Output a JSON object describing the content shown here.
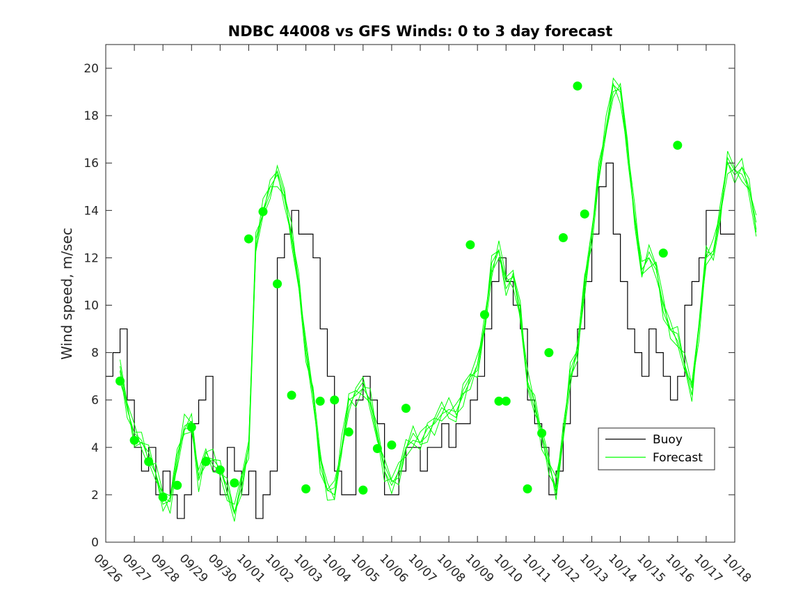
{
  "chart_data": {
    "type": "line",
    "title": "NDBC 44008 vs GFS Winds: 0 to 3 day forecast",
    "xlabel": "",
    "ylabel": "Wind speed, m/sec",
    "x_unit": "day",
    "x_ticks": [
      "09/26",
      "09/27",
      "09/28",
      "09/29",
      "09/30",
      "10/01",
      "10/02",
      "10/03",
      "10/04",
      "10/05",
      "10/06",
      "10/07",
      "10/08",
      "10/09",
      "10/10",
      "10/11",
      "10/12",
      "10/13",
      "10/14",
      "10/15",
      "10/16",
      "10/17",
      "10/18"
    ],
    "xlim": [
      "09/26 00:00",
      "10/18 00:00"
    ],
    "ylim": [
      0,
      21
    ],
    "y_ticks": [
      0,
      2,
      4,
      6,
      8,
      10,
      12,
      14,
      16,
      18,
      20
    ],
    "grid": false,
    "legend": {
      "placement": "lower-right",
      "entries": [
        "Buoy",
        "Forecast"
      ]
    },
    "colors": {
      "buoy": "#000000",
      "forecast": "#00ff00",
      "markers": "#00ff00"
    },
    "series": [
      {
        "name": "Buoy",
        "style": "step-line",
        "points": [
          [
            "09/26 00:00",
            7
          ],
          [
            "09/26 06:00",
            8
          ],
          [
            "09/26 12:00",
            9
          ],
          [
            "09/26 18:00",
            6
          ],
          [
            "09/27 00:00",
            4
          ],
          [
            "09/27 06:00",
            3
          ],
          [
            "09/27 12:00",
            4
          ],
          [
            "09/27 18:00",
            2
          ],
          [
            "09/28 00:00",
            3
          ],
          [
            "09/28 06:00",
            2
          ],
          [
            "09/28 12:00",
            1
          ],
          [
            "09/28 18:00",
            2
          ],
          [
            "09/29 00:00",
            5
          ],
          [
            "09/29 06:00",
            6
          ],
          [
            "09/29 12:00",
            7
          ],
          [
            "09/29 18:00",
            3
          ],
          [
            "09/30 00:00",
            2
          ],
          [
            "09/30 06:00",
            4
          ],
          [
            "09/30 12:00",
            3
          ],
          [
            "09/30 18:00",
            2
          ],
          [
            "10/01 00:00",
            3
          ],
          [
            "10/01 06:00",
            1
          ],
          [
            "10/01 12:00",
            2
          ],
          [
            "10/01 18:00",
            3
          ],
          [
            "10/02 00:00",
            12
          ],
          [
            "10/02 06:00",
            13
          ],
          [
            "10/02 12:00",
            14
          ],
          [
            "10/02 18:00",
            13
          ],
          [
            "10/03 00:00",
            13
          ],
          [
            "10/03 06:00",
            12
          ],
          [
            "10/03 12:00",
            9
          ],
          [
            "10/03 18:00",
            7
          ],
          [
            "10/04 00:00",
            3
          ],
          [
            "10/04 06:00",
            2
          ],
          [
            "10/04 12:00",
            2
          ],
          [
            "10/04 18:00",
            6
          ],
          [
            "10/05 00:00",
            7
          ],
          [
            "10/05 06:00",
            6
          ],
          [
            "10/05 12:00",
            5
          ],
          [
            "10/05 18:00",
            2
          ],
          [
            "10/06 00:00",
            2
          ],
          [
            "10/06 06:00",
            3
          ],
          [
            "10/06 12:00",
            4
          ],
          [
            "10/06 18:00",
            4
          ],
          [
            "10/07 00:00",
            3
          ],
          [
            "10/07 06:00",
            4
          ],
          [
            "10/07 12:00",
            4
          ],
          [
            "10/07 18:00",
            5
          ],
          [
            "10/08 00:00",
            4
          ],
          [
            "10/08 06:00",
            5
          ],
          [
            "10/08 12:00",
            5
          ],
          [
            "10/08 18:00",
            6
          ],
          [
            "10/09 00:00",
            7
          ],
          [
            "10/09 06:00",
            9
          ],
          [
            "10/09 12:00",
            11
          ],
          [
            "10/09 18:00",
            12
          ],
          [
            "10/10 00:00",
            11
          ],
          [
            "10/10 06:00",
            10
          ],
          [
            "10/10 12:00",
            9
          ],
          [
            "10/10 18:00",
            6
          ],
          [
            "10/11 00:00",
            5
          ],
          [
            "10/11 06:00",
            4
          ],
          [
            "10/11 12:00",
            2
          ],
          [
            "10/11 18:00",
            3
          ],
          [
            "10/12 00:00",
            5
          ],
          [
            "10/12 06:00",
            7
          ],
          [
            "10/12 12:00",
            9
          ],
          [
            "10/12 18:00",
            11
          ],
          [
            "10/13 00:00",
            13
          ],
          [
            "10/13 06:00",
            15
          ],
          [
            "10/13 12:00",
            16
          ],
          [
            "10/13 18:00",
            13
          ],
          [
            "10/14 00:00",
            11
          ],
          [
            "10/14 06:00",
            9
          ],
          [
            "10/14 12:00",
            8
          ],
          [
            "10/14 18:00",
            7
          ],
          [
            "10/15 00:00",
            9
          ],
          [
            "10/15 06:00",
            8
          ],
          [
            "10/15 12:00",
            7
          ],
          [
            "10/15 18:00",
            6
          ],
          [
            "10/16 00:00",
            7
          ],
          [
            "10/16 06:00",
            10
          ],
          [
            "10/16 12:00",
            11
          ],
          [
            "10/16 18:00",
            12
          ],
          [
            "10/17 00:00",
            14
          ],
          [
            "10/17 06:00",
            14
          ],
          [
            "10/17 12:00",
            13
          ],
          [
            "10/17 18:00",
            13
          ]
        ]
      },
      {
        "name": "Forecast",
        "style": "line-ensemble",
        "points": [
          [
            "09/26 12:00",
            7.2
          ],
          [
            "09/26 18:00",
            5.6
          ],
          [
            "09/27 00:00",
            4.6
          ],
          [
            "09/27 06:00",
            4.3
          ],
          [
            "09/27 12:00",
            3.5
          ],
          [
            "09/27 18:00",
            2.9
          ],
          [
            "09/28 00:00",
            1.9
          ],
          [
            "09/28 06:00",
            1.7
          ],
          [
            "09/28 12:00",
            3.4
          ],
          [
            "09/28 18:00",
            4.9
          ],
          [
            "09/29 00:00",
            5.1
          ],
          [
            "09/29 06:00",
            2.6
          ],
          [
            "09/29 12:00",
            3.6
          ],
          [
            "09/29 18:00",
            3.5
          ],
          [
            "09/30 00:00",
            3.1
          ],
          [
            "09/30 06:00",
            2.1
          ],
          [
            "09/30 12:00",
            1.2
          ],
          [
            "09/30 18:00",
            2.6
          ],
          [
            "10/01 00:00",
            4.0
          ],
          [
            "10/01 06:00",
            12.5
          ],
          [
            "10/01 12:00",
            14.0
          ],
          [
            "10/01 18:00",
            15.0
          ],
          [
            "10/02 00:00",
            15.5
          ],
          [
            "10/02 06:00",
            14.5
          ],
          [
            "10/02 12:00",
            13.0
          ],
          [
            "10/02 18:00",
            11.0
          ],
          [
            "10/03 00:00",
            8.0
          ],
          [
            "10/03 06:00",
            6.2
          ],
          [
            "10/03 12:00",
            3.5
          ],
          [
            "10/03 18:00",
            2.2
          ],
          [
            "10/04 00:00",
            2.0
          ],
          [
            "10/04 06:00",
            4.0
          ],
          [
            "10/04 12:00",
            6.0
          ],
          [
            "10/04 18:00",
            6.2
          ],
          [
            "10/05 00:00",
            6.5
          ],
          [
            "10/05 06:00",
            6.0
          ],
          [
            "10/05 12:00",
            4.6
          ],
          [
            "10/05 18:00",
            3.0
          ],
          [
            "10/06 00:00",
            2.4
          ],
          [
            "10/06 06:00",
            3.0
          ],
          [
            "10/06 12:00",
            4.0
          ],
          [
            "10/06 18:00",
            4.3
          ],
          [
            "10/07 00:00",
            4.2
          ],
          [
            "10/07 06:00",
            4.8
          ],
          [
            "10/07 12:00",
            5.0
          ],
          [
            "10/07 18:00",
            5.4
          ],
          [
            "10/08 00:00",
            5.6
          ],
          [
            "10/08 06:00",
            5.5
          ],
          [
            "10/08 12:00",
            6.2
          ],
          [
            "10/08 18:00",
            6.8
          ],
          [
            "10/09 00:00",
            7.5
          ],
          [
            "10/09 06:00",
            9.2
          ],
          [
            "10/09 12:00",
            11.5
          ],
          [
            "10/09 18:00",
            12.3
          ],
          [
            "10/10 00:00",
            11.0
          ],
          [
            "10/10 06:00",
            11.2
          ],
          [
            "10/10 12:00",
            9.6
          ],
          [
            "10/10 18:00",
            6.8
          ],
          [
            "10/11 00:00",
            5.9
          ],
          [
            "10/11 06:00",
            4.4
          ],
          [
            "10/11 12:00",
            3.2
          ],
          [
            "10/11 18:00",
            2.3
          ],
          [
            "10/12 00:00",
            4.6
          ],
          [
            "10/12 06:00",
            7.0
          ],
          [
            "10/12 12:00",
            8.0
          ],
          [
            "10/12 18:00",
            11.0
          ],
          [
            "10/13 00:00",
            12.9
          ],
          [
            "10/13 06:00",
            15.5
          ],
          [
            "10/13 12:00",
            17.5
          ],
          [
            "10/13 18:00",
            19.3
          ],
          [
            "10/14 00:00",
            19.0
          ],
          [
            "10/14 06:00",
            16.5
          ],
          [
            "10/14 12:00",
            13.8
          ],
          [
            "10/14 18:00",
            11.5
          ],
          [
            "10/15 00:00",
            12.0
          ],
          [
            "10/15 06:00",
            11.5
          ],
          [
            "10/15 12:00",
            10.0
          ],
          [
            "10/15 18:00",
            9.0
          ],
          [
            "10/16 00:00",
            8.5
          ],
          [
            "10/16 06:00",
            7.5
          ],
          [
            "10/16 12:00",
            6.5
          ],
          [
            "10/16 18:00",
            9.0
          ],
          [
            "10/17 00:00",
            12.0
          ],
          [
            "10/17 06:00",
            12.3
          ],
          [
            "10/17 12:00",
            14.0
          ],
          [
            "10/17 18:00",
            16.0
          ],
          [
            "10/18 00:00",
            15.5
          ],
          [
            "10/18 06:00",
            15.8
          ],
          [
            "10/18 12:00",
            15.0
          ],
          [
            "10/18 18:00",
            13.2
          ]
        ]
      },
      {
        "name": "",
        "style": "markers",
        "points": [
          [
            "09/26 12:00",
            6.8
          ],
          [
            "09/27 00:00",
            4.3
          ],
          [
            "09/27 12:00",
            3.4
          ],
          [
            "09/28 00:00",
            1.9
          ],
          [
            "09/28 12:00",
            2.4
          ],
          [
            "09/29 00:00",
            4.85
          ],
          [
            "09/29 12:00",
            3.4
          ],
          [
            "09/30 00:00",
            3.05
          ],
          [
            "09/30 12:00",
            2.5
          ],
          [
            "10/01 00:00",
            12.8
          ],
          [
            "10/01 12:00",
            13.95
          ],
          [
            "10/02 00:00",
            10.9
          ],
          [
            "10/02 12:00",
            6.2
          ],
          [
            "10/03 00:00",
            2.25
          ],
          [
            "10/03 12:00",
            5.95
          ],
          [
            "10/04 00:00",
            6.0
          ],
          [
            "10/04 12:00",
            4.65
          ],
          [
            "10/05 00:00",
            2.2
          ],
          [
            "10/05 12:00",
            3.95
          ],
          [
            "10/06 00:00",
            4.1
          ],
          [
            "10/06 12:00",
            5.65
          ],
          [
            "10/08 18:00",
            12.55
          ],
          [
            "10/09 06:00",
            9.6
          ],
          [
            "10/09 18:00",
            5.95
          ],
          [
            "10/10 00:00",
            5.95
          ],
          [
            "10/10 18:00",
            2.25
          ],
          [
            "10/11 06:00",
            4.6
          ],
          [
            "10/11 12:00",
            8.0
          ],
          [
            "10/12 00:00",
            12.85
          ],
          [
            "10/12 12:00",
            19.25
          ],
          [
            "10/12 18:00",
            13.85
          ],
          [
            "10/15 12:00",
            12.2
          ],
          [
            "10/16 00:00",
            16.75
          ]
        ]
      }
    ]
  }
}
